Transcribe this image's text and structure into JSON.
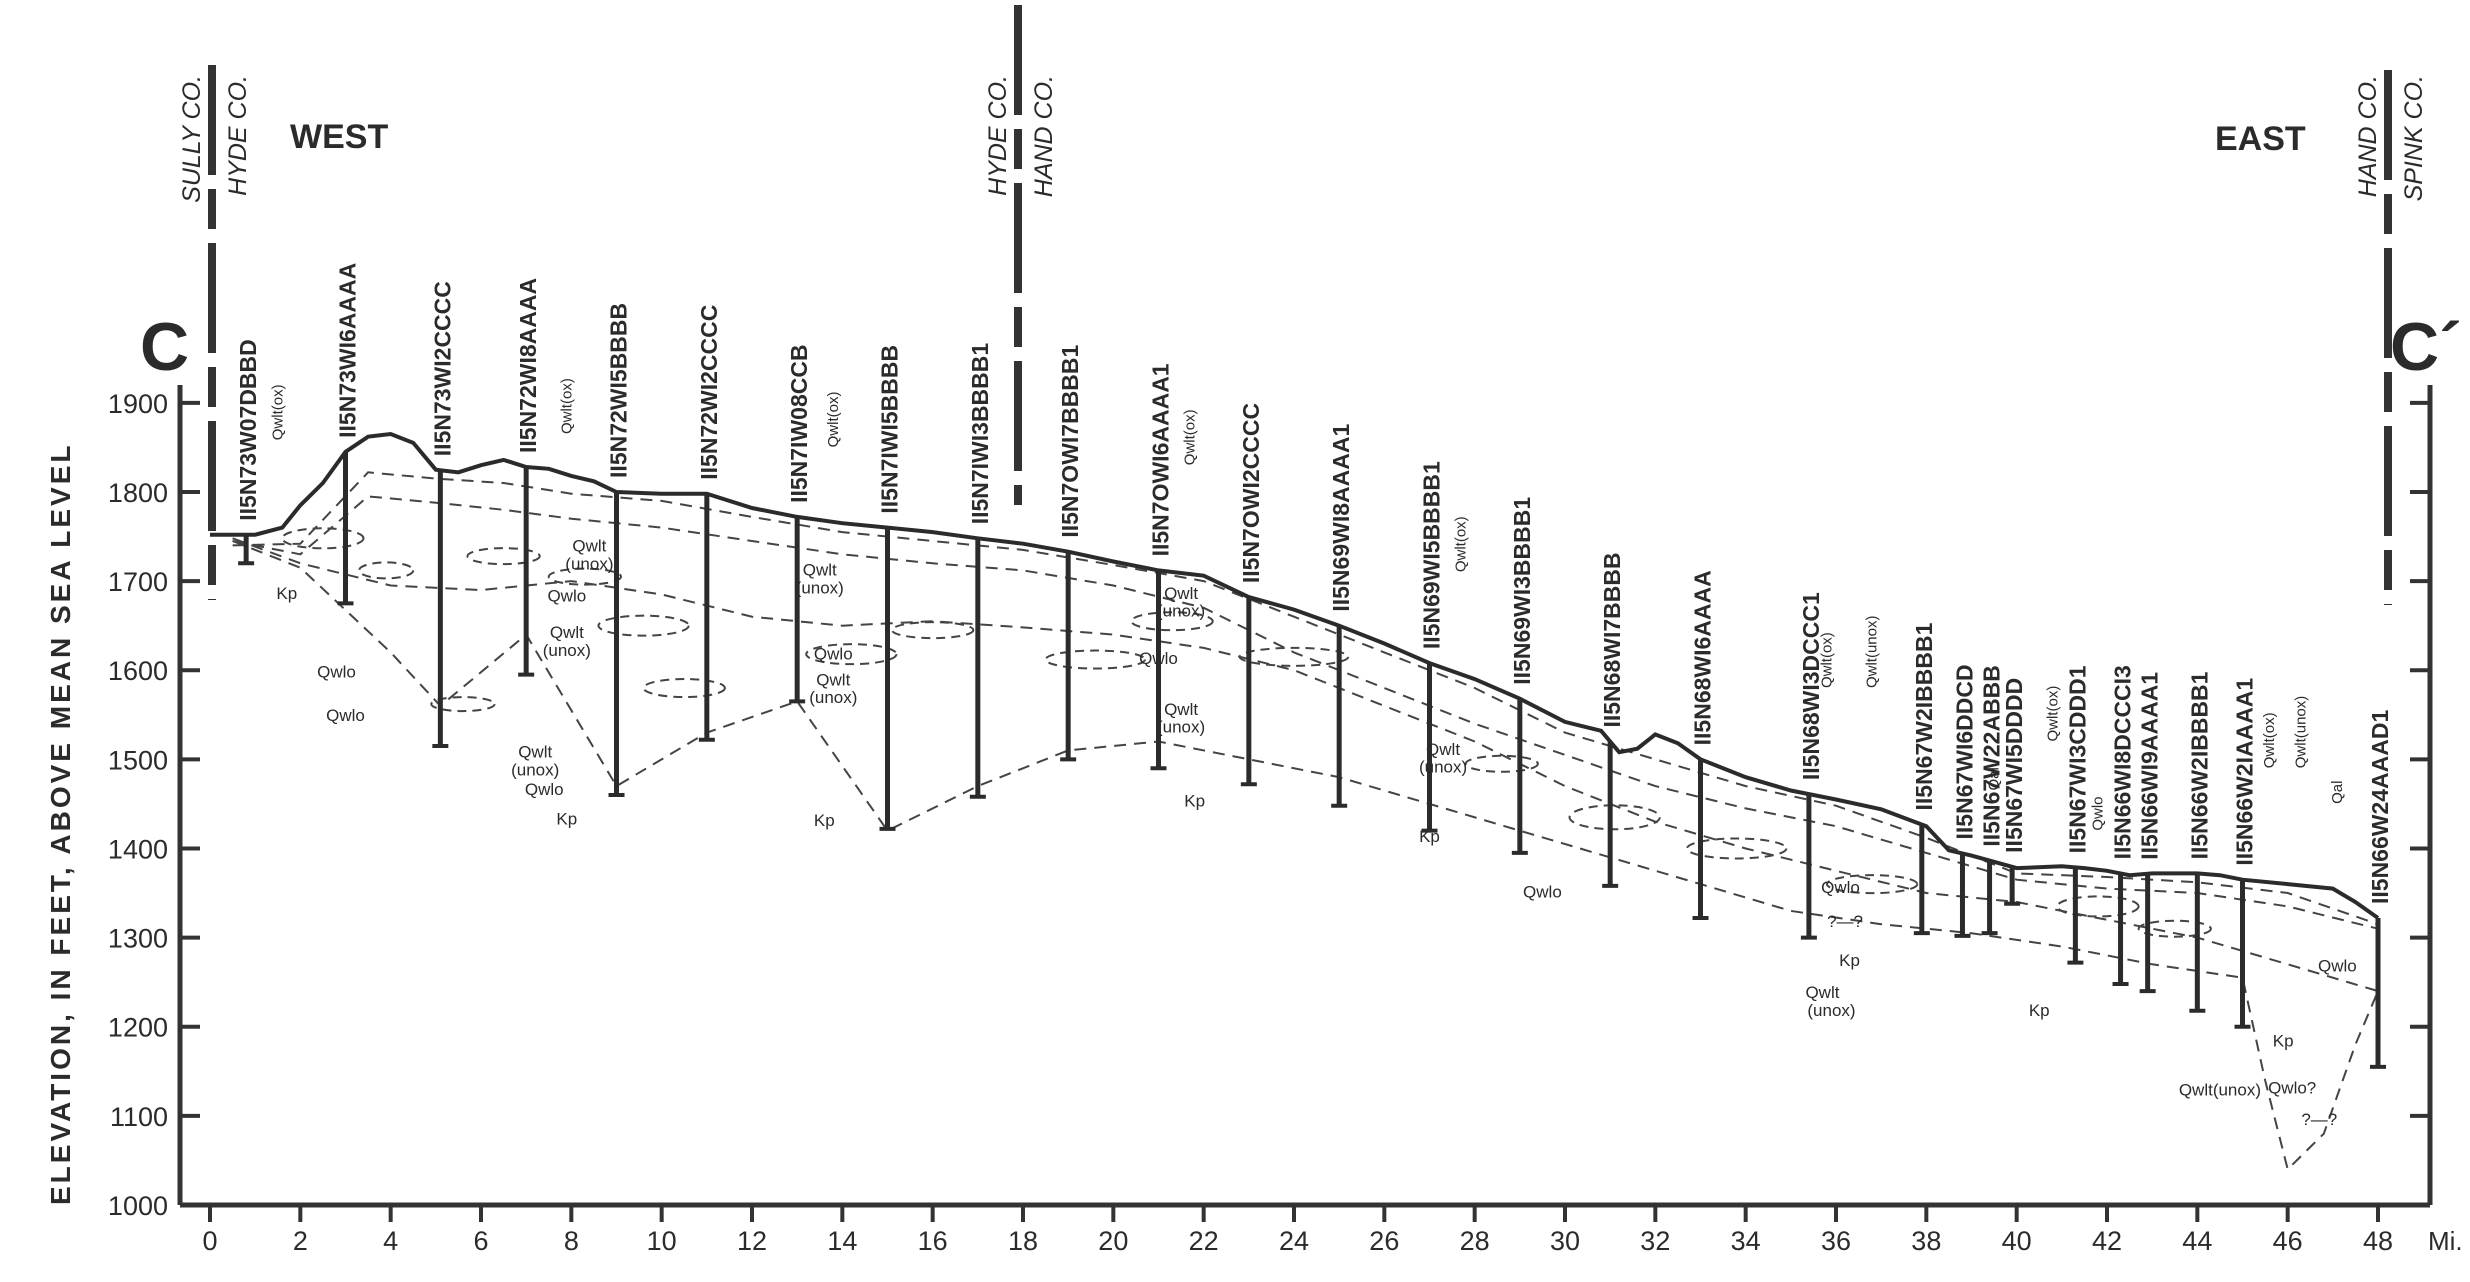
{
  "section": {
    "label_left": "C",
    "label_right": "C´",
    "direction_west": "WEST",
    "direction_east": "EAST",
    "y_axis_label": "ELEVATION, IN FEET, ABOVE MEAN SEA LEVEL",
    "x_unit": "Mi.",
    "x_ticks": [
      0,
      2,
      4,
      6,
      8,
      10,
      12,
      14,
      16,
      18,
      20,
      22,
      24,
      26,
      28,
      30,
      32,
      34,
      36,
      38,
      40,
      42,
      44,
      46,
      48
    ],
    "y_ticks": [
      1000,
      1100,
      1200,
      1300,
      1400,
      1500,
      1600,
      1700,
      1800,
      1900
    ],
    "county_lines": [
      {
        "mile": 0,
        "west": "SULLY CO.",
        "east": "HYDE CO."
      },
      {
        "mile": 18,
        "west": "HYDE CO.",
        "east": "HAND CO."
      },
      {
        "mile": 48,
        "west": "HAND CO.",
        "east": "SPINK CO."
      }
    ]
  },
  "surface_profile": [
    [
      0,
      1752
    ],
    [
      1,
      1752
    ],
    [
      1.6,
      1760
    ],
    [
      2,
      1785
    ],
    [
      2.5,
      1810
    ],
    [
      3,
      1845
    ],
    [
      3.5,
      1862
    ],
    [
      4,
      1865
    ],
    [
      4.5,
      1855
    ],
    [
      5,
      1825
    ],
    [
      5.5,
      1822
    ],
    [
      6,
      1830
    ],
    [
      6.5,
      1836
    ],
    [
      7,
      1828
    ],
    [
      7.5,
      1826
    ],
    [
      8,
      1818
    ],
    [
      8.5,
      1812
    ],
    [
      9,
      1800
    ],
    [
      10,
      1798
    ],
    [
      11,
      1798
    ],
    [
      12,
      1782
    ],
    [
      13,
      1772
    ],
    [
      14,
      1765
    ],
    [
      15,
      1760
    ],
    [
      16,
      1755
    ],
    [
      17,
      1748
    ],
    [
      18,
      1742
    ],
    [
      19,
      1733
    ],
    [
      20,
      1722
    ],
    [
      21,
      1712
    ],
    [
      22,
      1706
    ],
    [
      23,
      1682
    ],
    [
      24,
      1668
    ],
    [
      25,
      1650
    ],
    [
      26,
      1630
    ],
    [
      27,
      1608
    ],
    [
      28,
      1590
    ],
    [
      29,
      1568
    ],
    [
      30,
      1542
    ],
    [
      30.8,
      1532
    ],
    [
      31.2,
      1508
    ],
    [
      31.6,
      1512
    ],
    [
      32,
      1528
    ],
    [
      32.5,
      1518
    ],
    [
      33,
      1500
    ],
    [
      34,
      1480
    ],
    [
      35,
      1465
    ],
    [
      36,
      1455
    ],
    [
      37,
      1444
    ],
    [
      38,
      1425
    ],
    [
      38.5,
      1398
    ],
    [
      39,
      1392
    ],
    [
      39.5,
      1385
    ],
    [
      40,
      1378
    ],
    [
      41,
      1380
    ],
    [
      41.5,
      1378
    ],
    [
      42,
      1375
    ],
    [
      42.5,
      1370
    ],
    [
      43,
      1372
    ],
    [
      44,
      1372
    ],
    [
      44.5,
      1370
    ],
    [
      45,
      1365
    ],
    [
      46,
      1360
    ],
    [
      47,
      1355
    ],
    [
      47.5,
      1340
    ],
    [
      48,
      1322
    ]
  ],
  "wells": [
    {
      "id": "II5N73W07DBBD",
      "mile": 0.8,
      "bottom": 1720
    },
    {
      "id": "II5N73WI6AAAA",
      "mile": 3,
      "bottom": 1675
    },
    {
      "id": "II5N73WI2CCCC",
      "mile": 5.1,
      "bottom": 1515
    },
    {
      "id": "II5N72WI8AAAA",
      "mile": 7,
      "bottom": 1595
    },
    {
      "id": "II5N72WI5BBBB",
      "mile": 9,
      "bottom": 1460
    },
    {
      "id": "II5N72WI2CCCC",
      "mile": 11,
      "bottom": 1522
    },
    {
      "id": "II5N7IW08CCB",
      "mile": 13,
      "bottom": 1565
    },
    {
      "id": "II5N7IWI5BBBB",
      "mile": 15,
      "bottom": 1422
    },
    {
      "id": "II5N7IWI3BBBB1",
      "mile": 17,
      "bottom": 1458
    },
    {
      "id": "II5N7OWI7BBBB1",
      "mile": 19,
      "bottom": 1500
    },
    {
      "id": "II5N7OWI6AAAA1",
      "mile": 21,
      "bottom": 1490
    },
    {
      "id": "II5N7OWI2CCCC",
      "mile": 23,
      "bottom": 1472
    },
    {
      "id": "II5N69WI8AAAA1",
      "mile": 25,
      "bottom": 1448
    },
    {
      "id": "II5N69WI5BBBB1",
      "mile": 27,
      "bottom": 1420
    },
    {
      "id": "II5N69WI3BBBB1",
      "mile": 29,
      "bottom": 1395
    },
    {
      "id": "II5N68WI7BBBB",
      "mile": 31,
      "bottom": 1358
    },
    {
      "id": "II5N68WI6AAAA",
      "mile": 33,
      "bottom": 1322
    },
    {
      "id": "II5N68WI3DCCC1",
      "mile": 35.4,
      "bottom": 1300
    },
    {
      "id": "II5N67W2IBBBB1",
      "mile": 37.9,
      "bottom": 1305
    },
    {
      "id": "II5N67WI6DDCD",
      "mile": 38.8,
      "bottom": 1302
    },
    {
      "id": "II5N67W22ABBB",
      "mile": 39.4,
      "bottom": 1305
    },
    {
      "id": "II5N67WI5DDDD",
      "mile": 39.9,
      "bottom": 1338
    },
    {
      "id": "II5N67WI3CDDD1",
      "mile": 41.3,
      "bottom": 1272
    },
    {
      "id": "II5N66WI8DCCCI3",
      "mile": 42.3,
      "bottom": 1248
    },
    {
      "id": "II5N66WI9AAAA1",
      "mile": 42.9,
      "bottom": 1240
    },
    {
      "id": "II5N66W2IBBBB1",
      "mile": 44,
      "bottom": 1218
    },
    {
      "id": "II5N66W2IAAAA1",
      "mile": 45,
      "bottom": 1200
    },
    {
      "id": "II5N66W24AAAD1",
      "mile": 48,
      "bottom": 1155
    }
  ],
  "annotations": [
    {
      "text": "Qwlt(ox)",
      "mile": 1.6,
      "elev": 1858,
      "rot": -90
    },
    {
      "text": "Kp",
      "mile": 1.7,
      "elev": 1680
    },
    {
      "text": "Qwlo",
      "mile": 2.8,
      "elev": 1592
    },
    {
      "text": "Qwlo",
      "mile": 3.0,
      "elev": 1543
    },
    {
      "text": "Qwlt(ox)",
      "mile": 8.0,
      "elev": 1865,
      "rot": -90
    },
    {
      "text": "Qwlt",
      "mile": 8.4,
      "elev": 1733
    },
    {
      "text": "(unox)",
      "mile": 8.4,
      "elev": 1713
    },
    {
      "text": "Qwlo",
      "mile": 7.9,
      "elev": 1677
    },
    {
      "text": "Qwlt",
      "mile": 7.9,
      "elev": 1636
    },
    {
      "text": "(unox)",
      "mile": 7.9,
      "elev": 1616
    },
    {
      "text": "Qwlt",
      "mile": 7.2,
      "elev": 1502
    },
    {
      "text": "(unox)",
      "mile": 7.2,
      "elev": 1482
    },
    {
      "text": "Qwlo",
      "mile": 7.4,
      "elev": 1460
    },
    {
      "text": "Kp",
      "mile": 7.9,
      "elev": 1427
    },
    {
      "text": "Qwlt(ox)",
      "mile": 13.9,
      "elev": 1850,
      "rot": -90
    },
    {
      "text": "Qwlt",
      "mile": 13.5,
      "elev": 1706
    },
    {
      "text": "(unox)",
      "mile": 13.5,
      "elev": 1686
    },
    {
      "text": "Qwlo",
      "mile": 13.8,
      "elev": 1612
    },
    {
      "text": "Qwlt",
      "mile": 13.8,
      "elev": 1583
    },
    {
      "text": "(unox)",
      "mile": 13.8,
      "elev": 1563
    },
    {
      "text": "Kp",
      "mile": 13.6,
      "elev": 1425
    },
    {
      "text": "Qwlt(ox)",
      "mile": 21.8,
      "elev": 1830,
      "rot": -90
    },
    {
      "text": "Qwlt",
      "mile": 21.5,
      "elev": 1680
    },
    {
      "text": "(unox)",
      "mile": 21.5,
      "elev": 1660
    },
    {
      "text": "Qwlo",
      "mile": 21.0,
      "elev": 1607
    },
    {
      "text": "Qwlt",
      "mile": 21.5,
      "elev": 1550
    },
    {
      "text": "(unox)",
      "mile": 21.5,
      "elev": 1530
    },
    {
      "text": "Kp",
      "mile": 21.8,
      "elev": 1447
    },
    {
      "text": "Qwlt(ox)",
      "mile": 27.8,
      "elev": 1710,
      "rot": -90
    },
    {
      "text": "Qwlt",
      "mile": 27.3,
      "elev": 1505
    },
    {
      "text": "(unox)",
      "mile": 27.3,
      "elev": 1485
    },
    {
      "text": "Kp",
      "mile": 27.0,
      "elev": 1407
    },
    {
      "text": "Qwlo",
      "mile": 29.5,
      "elev": 1345
    },
    {
      "text": "Qwlt(ox)",
      "mile": 35.9,
      "elev": 1580,
      "rot": -90
    },
    {
      "text": "Qwlt(unox)",
      "mile": 36.9,
      "elev": 1580,
      "rot": -90
    },
    {
      "text": "Qwlo",
      "mile": 36.1,
      "elev": 1350
    },
    {
      "text": "?—?",
      "mile": 36.2,
      "elev": 1312
    },
    {
      "text": "Kp",
      "mile": 36.3,
      "elev": 1268
    },
    {
      "text": "Qwlt",
      "mile": 35.7,
      "elev": 1232
    },
    {
      "text": "(unox)",
      "mile": 35.9,
      "elev": 1212
    },
    {
      "text": "Qal",
      "mile": 39.6,
      "elev": 1465,
      "rot": -90
    },
    {
      "text": "Qwlt(ox)",
      "mile": 40.9,
      "elev": 1520,
      "rot": -90
    },
    {
      "text": "Qwlo",
      "mile": 41.9,
      "elev": 1420,
      "rot": -90
    },
    {
      "text": "Kp",
      "mile": 40.5,
      "elev": 1212
    },
    {
      "text": "Qwlt(ox)",
      "mile": 45.7,
      "elev": 1490,
      "rot": -90
    },
    {
      "text": "Qwlt(unox)",
      "mile": 46.4,
      "elev": 1490,
      "rot": -90
    },
    {
      "text": "Qal",
      "mile": 47.2,
      "elev": 1450,
      "rot": -90
    },
    {
      "text": "Qwlo",
      "mile": 47.1,
      "elev": 1262
    },
    {
      "text": "Kp",
      "mile": 45.9,
      "elev": 1178
    },
    {
      "text": "Qwlt(unox)",
      "mile": 44.5,
      "elev": 1123
    },
    {
      "text": "Qwlo?",
      "mile": 46.1,
      "elev": 1125
    },
    {
      "text": "?—?",
      "mile": 46.7,
      "elev": 1090
    }
  ],
  "contacts": [
    [
      [
        0.5,
        1740
      ],
      [
        2,
        1742
      ],
      [
        3.5,
        1822
      ],
      [
        5,
        1815
      ],
      [
        6.5,
        1810
      ],
      [
        8,
        1798
      ],
      [
        10,
        1790
      ],
      [
        12,
        1772
      ],
      [
        14,
        1755
      ],
      [
        16,
        1745
      ],
      [
        18,
        1735
      ],
      [
        20,
        1718
      ],
      [
        22,
        1700
      ],
      [
        24,
        1660
      ],
      [
        26,
        1620
      ],
      [
        28,
        1580
      ],
      [
        30,
        1530
      ],
      [
        32,
        1500
      ],
      [
        34,
        1470
      ],
      [
        36,
        1448
      ],
      [
        38,
        1412
      ],
      [
        40,
        1372
      ],
      [
        42,
        1368
      ],
      [
        44,
        1362
      ],
      [
        46,
        1350
      ],
      [
        48,
        1315
      ]
    ],
    [
      [
        0.5,
        1745
      ],
      [
        2,
        1730
      ],
      [
        3.5,
        1795
      ],
      [
        5,
        1788
      ],
      [
        6.5,
        1780
      ],
      [
        8,
        1770
      ],
      [
        10,
        1760
      ],
      [
        12,
        1745
      ],
      [
        14,
        1730
      ],
      [
        16,
        1720
      ],
      [
        18,
        1712
      ],
      [
        20,
        1695
      ],
      [
        22,
        1670
      ],
      [
        24,
        1620
      ],
      [
        26,
        1580
      ],
      [
        28,
        1540
      ],
      [
        30,
        1505
      ],
      [
        32,
        1470
      ],
      [
        34,
        1445
      ],
      [
        36,
        1425
      ],
      [
        38,
        1395
      ],
      [
        40,
        1365
      ],
      [
        42,
        1355
      ],
      [
        44,
        1350
      ],
      [
        46,
        1335
      ],
      [
        48,
        1310
      ]
    ],
    [
      [
        0.5,
        1748
      ],
      [
        2,
        1720
      ],
      [
        4,
        1695
      ],
      [
        6,
        1690
      ],
      [
        8,
        1700
      ],
      [
        10,
        1685
      ],
      [
        12,
        1660
      ],
      [
        14,
        1650
      ],
      [
        16,
        1655
      ],
      [
        18,
        1648
      ],
      [
        20,
        1640
      ],
      [
        22,
        1625
      ],
      [
        24,
        1600
      ],
      [
        26,
        1560
      ],
      [
        28,
        1520
      ],
      [
        30,
        1470
      ],
      [
        32,
        1430
      ],
      [
        34,
        1400
      ],
      [
        36,
        1375
      ],
      [
        38,
        1350
      ],
      [
        40,
        1340
      ],
      [
        42,
        1320
      ],
      [
        44,
        1300
      ],
      [
        46,
        1270
      ],
      [
        48,
        1240
      ]
    ],
    [
      [
        0.5,
        1745
      ],
      [
        2,
        1715
      ],
      [
        4,
        1620
      ],
      [
        5.1,
        1560
      ],
      [
        7,
        1640
      ],
      [
        9,
        1470
      ],
      [
        11,
        1530
      ],
      [
        13,
        1565
      ],
      [
        15,
        1420
      ],
      [
        17,
        1470
      ],
      [
        19,
        1510
      ],
      [
        21,
        1520
      ],
      [
        23,
        1500
      ],
      [
        25,
        1480
      ],
      [
        27,
        1450
      ],
      [
        29,
        1420
      ],
      [
        31,
        1390
      ],
      [
        33,
        1360
      ],
      [
        35,
        1330
      ],
      [
        37,
        1315
      ],
      [
        39,
        1305
      ],
      [
        41,
        1290
      ],
      [
        43,
        1270
      ],
      [
        45,
        1255
      ],
      [
        45.5,
        1140
      ],
      [
        46,
        1040
      ],
      [
        46.8,
        1080
      ],
      [
        47.5,
        1180
      ],
      [
        48,
        1240
      ]
    ]
  ],
  "lenses": [
    {
      "mile": 2.5,
      "elev": 1748,
      "rx": 0.9,
      "ry": 10
    },
    {
      "mile": 3.9,
      "elev": 1712,
      "rx": 0.6,
      "ry": 8
    },
    {
      "mile": 6.5,
      "elev": 1728,
      "rx": 0.8,
      "ry": 8
    },
    {
      "mile": 8.3,
      "elev": 1705,
      "rx": 0.8,
      "ry": 8
    },
    {
      "mile": 9.6,
      "elev": 1650,
      "rx": 1.0,
      "ry": 10
    },
    {
      "mile": 10.5,
      "elev": 1580,
      "rx": 0.9,
      "ry": 9
    },
    {
      "mile": 5.6,
      "elev": 1562,
      "rx": 0.7,
      "ry": 7
    },
    {
      "mile": 14.2,
      "elev": 1618,
      "rx": 1.0,
      "ry": 10
    },
    {
      "mile": 16.0,
      "elev": 1645,
      "rx": 0.9,
      "ry": 8
    },
    {
      "mile": 19.6,
      "elev": 1612,
      "rx": 1.1,
      "ry": 9
    },
    {
      "mile": 21.3,
      "elev": 1655,
      "rx": 0.9,
      "ry": 9
    },
    {
      "mile": 24.0,
      "elev": 1615,
      "rx": 1.2,
      "ry": 9
    },
    {
      "mile": 28.6,
      "elev": 1495,
      "rx": 0.8,
      "ry": 8
    },
    {
      "mile": 31.1,
      "elev": 1435,
      "rx": 1.0,
      "ry": 12
    },
    {
      "mile": 33.8,
      "elev": 1400,
      "rx": 1.1,
      "ry": 10
    },
    {
      "mile": 36.8,
      "elev": 1360,
      "rx": 1.0,
      "ry": 9
    },
    {
      "mile": 41.8,
      "elev": 1335,
      "rx": 0.9,
      "ry": 10
    },
    {
      "mile": 43.5,
      "elev": 1310,
      "rx": 0.8,
      "ry": 8
    }
  ]
}
